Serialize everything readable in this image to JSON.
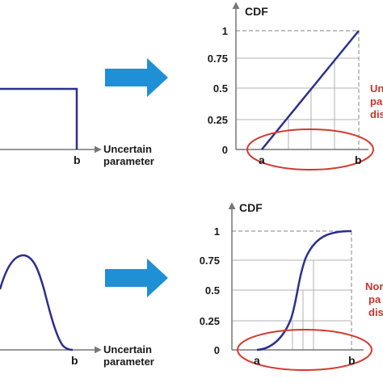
{
  "colors": {
    "curve": "#2b2f8f",
    "arrow": "#1f8fd6",
    "ellipse": "#d33a2f",
    "axis": "#777777",
    "grid": "#b0b0b0",
    "dashed": "#9a9a9a",
    "note": "#c8332b"
  },
  "top": {
    "pdf": {
      "b_label": "b",
      "axis_label_1": "Uncertain",
      "axis_label_2": "parameter"
    },
    "cdf": {
      "title": "CDF",
      "yticks": [
        "1",
        "0.75",
        "0.5",
        "0.25",
        "0"
      ],
      "a_label": "a",
      "b_label": "b",
      "note_lines": [
        "Un",
        "pa",
        "dis"
      ]
    }
  },
  "bottom": {
    "pdf": {
      "b_label": "b",
      "axis_label_1": "Uncertain",
      "axis_label_2": "parameter"
    },
    "cdf": {
      "title": "CDF",
      "yticks": [
        "1",
        "0.75",
        "0.5",
        "0.25",
        "0"
      ],
      "a_label": "a",
      "b_label": "b",
      "note_lines": [
        "Nor",
        "pa",
        "dis"
      ]
    }
  }
}
